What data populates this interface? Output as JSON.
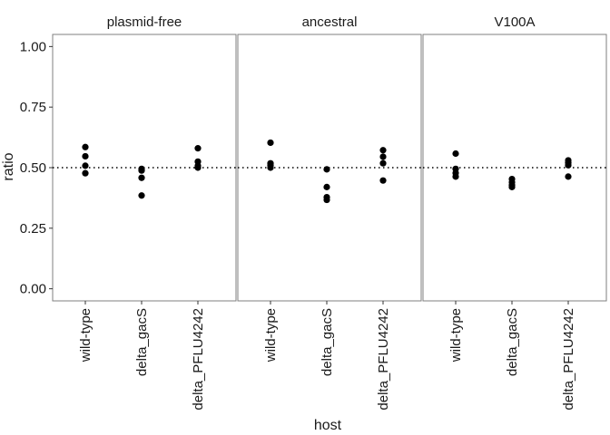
{
  "chart_data": {
    "type": "scatter",
    "facet_by": "panel",
    "panels": [
      "plasmid-free",
      "ancestral",
      "V100A"
    ],
    "categories": [
      "wild-type",
      "delta_gacS",
      "delta_PFLU4242"
    ],
    "xlabel": "host",
    "ylabel": "ratio",
    "ylim": [
      -0.05,
      1.05
    ],
    "yticks": [
      0.0,
      0.25,
      0.5,
      0.75,
      1.0
    ],
    "ytick_labels": [
      "0.00",
      "0.25",
      "0.50",
      "0.75",
      "1.00"
    ],
    "reference_line": {
      "y": 0.5,
      "style": "dotted"
    },
    "grid": false,
    "points": [
      {
        "panel": "plasmid-free",
        "x": "wild-type",
        "y": 0.585
      },
      {
        "panel": "plasmid-free",
        "x": "wild-type",
        "y": 0.547
      },
      {
        "panel": "plasmid-free",
        "x": "wild-type",
        "y": 0.508
      },
      {
        "panel": "plasmid-free",
        "x": "wild-type",
        "y": 0.477
      },
      {
        "panel": "plasmid-free",
        "x": "delta_gacS",
        "y": 0.495
      },
      {
        "panel": "plasmid-free",
        "x": "delta_gacS",
        "y": 0.488
      },
      {
        "panel": "plasmid-free",
        "x": "delta_gacS",
        "y": 0.458
      },
      {
        "panel": "plasmid-free",
        "x": "delta_gacS",
        "y": 0.385
      },
      {
        "panel": "plasmid-free",
        "x": "delta_PFLU4242",
        "y": 0.58
      },
      {
        "panel": "plasmid-free",
        "x": "delta_PFLU4242",
        "y": 0.525
      },
      {
        "panel": "plasmid-free",
        "x": "delta_PFLU4242",
        "y": 0.508
      },
      {
        "panel": "plasmid-free",
        "x": "delta_PFLU4242",
        "y": 0.5
      },
      {
        "panel": "ancestral",
        "x": "wild-type",
        "y": 0.603
      },
      {
        "panel": "ancestral",
        "x": "wild-type",
        "y": 0.518
      },
      {
        "panel": "ancestral",
        "x": "wild-type",
        "y": 0.51
      },
      {
        "panel": "ancestral",
        "x": "wild-type",
        "y": 0.5
      },
      {
        "panel": "ancestral",
        "x": "delta_gacS",
        "y": 0.493
      },
      {
        "panel": "ancestral",
        "x": "delta_gacS",
        "y": 0.42
      },
      {
        "panel": "ancestral",
        "x": "delta_gacS",
        "y": 0.378
      },
      {
        "panel": "ancestral",
        "x": "delta_gacS",
        "y": 0.367
      },
      {
        "panel": "ancestral",
        "x": "delta_PFLU4242",
        "y": 0.572
      },
      {
        "panel": "ancestral",
        "x": "delta_PFLU4242",
        "y": 0.545
      },
      {
        "panel": "ancestral",
        "x": "delta_PFLU4242",
        "y": 0.518
      },
      {
        "panel": "ancestral",
        "x": "delta_PFLU4242",
        "y": 0.447
      },
      {
        "panel": "V100A",
        "x": "wild-type",
        "y": 0.558
      },
      {
        "panel": "V100A",
        "x": "wild-type",
        "y": 0.495
      },
      {
        "panel": "V100A",
        "x": "wild-type",
        "y": 0.478
      },
      {
        "panel": "V100A",
        "x": "wild-type",
        "y": 0.463
      },
      {
        "panel": "V100A",
        "x": "delta_gacS",
        "y": 0.453
      },
      {
        "panel": "V100A",
        "x": "delta_gacS",
        "y": 0.44
      },
      {
        "panel": "V100A",
        "x": "delta_gacS",
        "y": 0.428
      },
      {
        "panel": "V100A",
        "x": "delta_gacS",
        "y": 0.42
      },
      {
        "panel": "V100A",
        "x": "delta_PFLU4242",
        "y": 0.53
      },
      {
        "panel": "V100A",
        "x": "delta_PFLU4242",
        "y": 0.52
      },
      {
        "panel": "V100A",
        "x": "delta_PFLU4242",
        "y": 0.51
      },
      {
        "panel": "V100A",
        "x": "delta_PFLU4242",
        "y": 0.463
      }
    ],
    "colors": {
      "points": "#000000",
      "panel_border": "#7f7f7f",
      "reference_line": "#000000"
    }
  }
}
